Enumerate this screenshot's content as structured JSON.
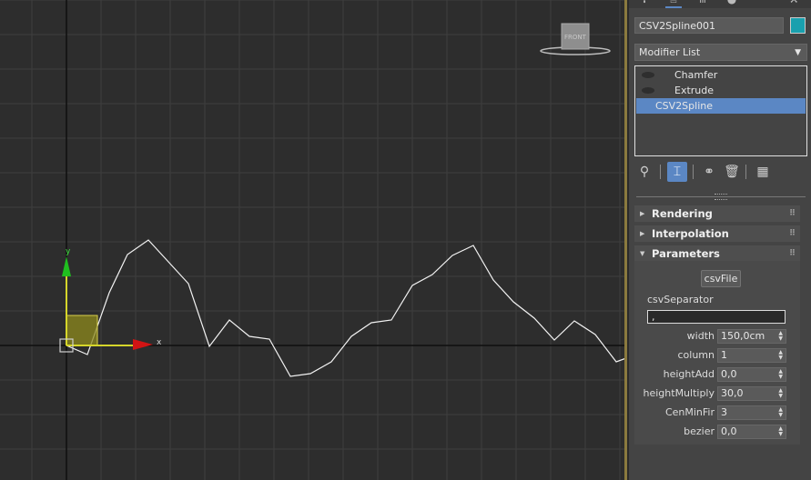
{
  "viewport": {
    "viewcube_label": "FRONT",
    "axis_x_label": "x",
    "axis_y_label": "y"
  },
  "panel": {
    "object_name": "CSV2Spline001",
    "object_color": "#19a0ae",
    "modifier_list_label": "Modifier List",
    "stack": [
      {
        "label": "Chamfer",
        "selected": false
      },
      {
        "label": "Extrude",
        "selected": false
      },
      {
        "label": "CSV2Spline",
        "selected": true
      }
    ],
    "rollouts": {
      "rendering": "Rendering",
      "interpolation": "Interpolation",
      "parameters": "Parameters"
    },
    "params": {
      "csvfile_button": "csvFile",
      "csvseparator_label": "csvSeparator",
      "csvseparator_value": ",",
      "rows": [
        {
          "label": "width",
          "value": "150,0cm"
        },
        {
          "label": "column",
          "value": "1"
        },
        {
          "label": "heightAdd",
          "value": "0,0"
        },
        {
          "label": "heightMultiply",
          "value": "30,0"
        },
        {
          "label": "CenMinFir",
          "value": "3"
        },
        {
          "label": "bezier",
          "value": "0,0"
        }
      ]
    }
  },
  "icons": [
    "pin-icon",
    "show-end-result-icon",
    "make-unique-icon",
    "remove-modifier-icon",
    "configure-modifier-sets-icon"
  ]
}
